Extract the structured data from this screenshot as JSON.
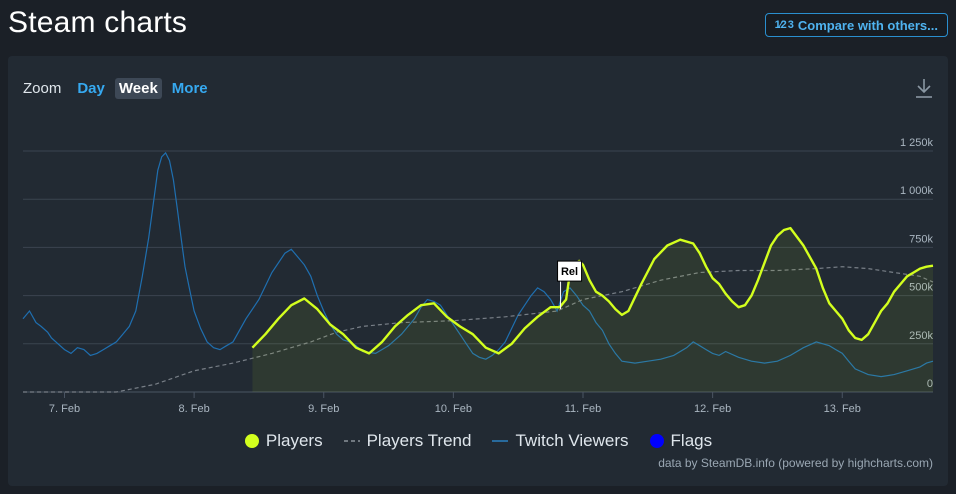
{
  "page": {
    "title": "Steam charts"
  },
  "compare": {
    "icon": "fraction-icon",
    "icon_text": "1⁄2 3",
    "label": "Compare with others..."
  },
  "zoom": {
    "label": "Zoom",
    "options": [
      {
        "label": "Day",
        "active": false
      },
      {
        "label": "Week",
        "active": true
      },
      {
        "label": "More",
        "active": false
      }
    ]
  },
  "download": {
    "icon": "download-icon"
  },
  "colors": {
    "players": "#d3ff1e",
    "trend": "#787f87",
    "twitch": "#1f6fb0",
    "flags": "#0000ff",
    "grid": "#3b4450",
    "text": "#c7d5e0"
  },
  "legend": [
    {
      "key": "players",
      "label": "Players",
      "symbol": "circle"
    },
    {
      "key": "trend",
      "label": "Players Trend",
      "symbol": "dash"
    },
    {
      "key": "twitch",
      "label": "Twitch Viewers",
      "symbol": "line"
    },
    {
      "key": "flags",
      "label": "Flags",
      "symbol": "circle"
    }
  ],
  "credits": "data by SteamDB.info (powered by highcharts.com)",
  "chart_data": {
    "type": "line",
    "x_unit": "days (Feb)",
    "xlim": [
      6.68,
      13.7
    ],
    "ylim": [
      0,
      1250
    ],
    "y_ticks": [
      {
        "value": 0,
        "label": "0"
      },
      {
        "value": 250,
        "label": "250k"
      },
      {
        "value": 500,
        "label": "500k"
      },
      {
        "value": 750,
        "label": "750k"
      },
      {
        "value": 1000,
        "label": "1 000k"
      },
      {
        "value": 1250,
        "label": "1 250k"
      }
    ],
    "x_ticks": [
      {
        "value": 7,
        "label": "7. Feb"
      },
      {
        "value": 8,
        "label": "8. Feb"
      },
      {
        "value": 9,
        "label": "9. Feb"
      },
      {
        "value": 10,
        "label": "10. Feb"
      },
      {
        "value": 11,
        "label": "11. Feb"
      },
      {
        "value": 12,
        "label": "12. Feb"
      },
      {
        "value": 13,
        "label": "13. Feb"
      }
    ],
    "grid": true,
    "legend_position": "bottom",
    "flags": [
      {
        "x": 10.85,
        "label": "Rel"
      }
    ],
    "series": [
      {
        "name": "Twitch Viewers",
        "key": "twitch",
        "x": [
          6.68,
          6.73,
          6.78,
          6.82,
          6.87,
          6.9,
          6.95,
          7.0,
          7.05,
          7.1,
          7.15,
          7.2,
          7.25,
          7.3,
          7.35,
          7.4,
          7.45,
          7.5,
          7.55,
          7.6,
          7.65,
          7.7,
          7.72,
          7.75,
          7.78,
          7.81,
          7.84,
          7.87,
          7.9,
          7.93,
          7.96,
          8.0,
          8.05,
          8.1,
          8.15,
          8.2,
          8.25,
          8.3,
          8.35,
          8.4,
          8.5,
          8.6,
          8.7,
          8.75,
          8.8,
          8.85,
          8.9,
          8.95,
          9.0,
          9.05,
          9.1,
          9.15,
          9.2,
          9.25,
          9.3,
          9.4,
          9.5,
          9.6,
          9.7,
          9.75,
          9.8,
          9.85,
          9.9,
          9.95,
          10.0,
          10.05,
          10.1,
          10.15,
          10.2,
          10.25,
          10.3,
          10.35,
          10.4,
          10.45,
          10.5,
          10.55,
          10.6,
          10.65,
          10.7,
          10.75,
          10.8,
          10.85,
          10.9,
          10.95,
          11.0,
          11.05,
          11.1,
          11.15,
          11.2,
          11.25,
          11.3,
          11.4,
          11.5,
          11.6,
          11.7,
          11.8,
          11.85,
          11.9,
          11.95,
          12.0,
          12.05,
          12.1,
          12.2,
          12.3,
          12.4,
          12.5,
          12.6,
          12.7,
          12.8,
          12.9,
          12.95,
          13.0,
          13.05,
          13.1,
          13.2,
          13.3,
          13.4,
          13.5,
          13.6,
          13.65,
          13.7
        ],
        "values": [
          380,
          420,
          360,
          340,
          310,
          280,
          250,
          220,
          200,
          230,
          220,
          190,
          200,
          220,
          240,
          260,
          300,
          340,
          420,
          600,
          800,
          1050,
          1150,
          1220,
          1240,
          1200,
          1100,
          950,
          800,
          650,
          550,
          420,
          330,
          260,
          230,
          220,
          240,
          260,
          320,
          380,
          480,
          620,
          720,
          740,
          700,
          660,
          600,
          500,
          420,
          350,
          300,
          270,
          260,
          240,
          210,
          200,
          240,
          300,
          380,
          440,
          480,
          470,
          450,
          400,
          350,
          300,
          250,
          200,
          180,
          170,
          190,
          220,
          260,
          330,
          400,
          450,
          500,
          540,
          520,
          480,
          420,
          520,
          540,
          500,
          450,
          420,
          360,
          320,
          250,
          200,
          160,
          150,
          160,
          170,
          190,
          230,
          260,
          240,
          220,
          200,
          190,
          210,
          180,
          160,
          150,
          160,
          190,
          230,
          260,
          240,
          220,
          200,
          160,
          120,
          90,
          80,
          90,
          110,
          130,
          150,
          160
        ],
        "style": "thin"
      },
      {
        "name": "Players",
        "key": "players",
        "x": [
          8.45,
          8.55,
          8.65,
          8.75,
          8.85,
          8.95,
          9.05,
          9.15,
          9.25,
          9.35,
          9.45,
          9.55,
          9.65,
          9.75,
          9.85,
          9.95,
          10.05,
          10.15,
          10.25,
          10.35,
          10.45,
          10.55,
          10.65,
          10.75,
          10.82,
          10.87,
          10.9,
          10.93,
          10.97,
          11.0,
          11.05,
          11.1,
          11.15,
          11.2,
          11.25,
          11.3,
          11.35,
          11.45,
          11.55,
          11.65,
          11.75,
          11.85,
          11.9,
          11.95,
          12.0,
          12.05,
          12.1,
          12.15,
          12.2,
          12.25,
          12.3,
          12.35,
          12.4,
          12.45,
          12.5,
          12.55,
          12.6,
          12.7,
          12.8,
          12.85,
          12.9,
          12.95,
          13.0,
          13.05,
          13.1,
          13.15,
          13.2,
          13.25,
          13.3,
          13.35,
          13.4,
          13.45,
          13.5,
          13.55,
          13.6,
          13.65,
          13.7
        ],
        "values": [
          230,
          300,
          380,
          450,
          485,
          430,
          350,
          300,
          230,
          200,
          260,
          340,
          400,
          450,
          460,
          390,
          340,
          300,
          230,
          200,
          250,
          330,
          390,
          440,
          440,
          480,
          620,
          660,
          680,
          660,
          580,
          520,
          500,
          470,
          430,
          400,
          420,
          560,
          690,
          760,
          790,
          770,
          720,
          650,
          590,
          560,
          510,
          470,
          440,
          450,
          500,
          580,
          670,
          760,
          810,
          840,
          850,
          760,
          640,
          540,
          460,
          420,
          380,
          320,
          280,
          270,
          300,
          360,
          420,
          460,
          520,
          560,
          600,
          620,
          640,
          650,
          655
        ],
        "style": "thick"
      },
      {
        "name": "Players Trend",
        "key": "trend",
        "x": [
          6.68,
          7.0,
          7.4,
          7.7,
          8.0,
          8.3,
          8.6,
          8.9,
          9.1,
          9.3,
          9.6,
          10.0,
          10.4,
          10.8,
          11.0,
          11.3,
          11.6,
          11.9,
          12.2,
          12.5,
          12.8,
          13.0,
          13.2,
          13.4,
          13.6,
          13.7
        ],
        "values": [
          0,
          0,
          0,
          40,
          110,
          150,
          200,
          260,
          310,
          340,
          360,
          370,
          390,
          420,
          480,
          520,
          580,
          620,
          630,
          630,
          640,
          650,
          640,
          620,
          600,
          570
        ],
        "style": "dash"
      }
    ]
  }
}
